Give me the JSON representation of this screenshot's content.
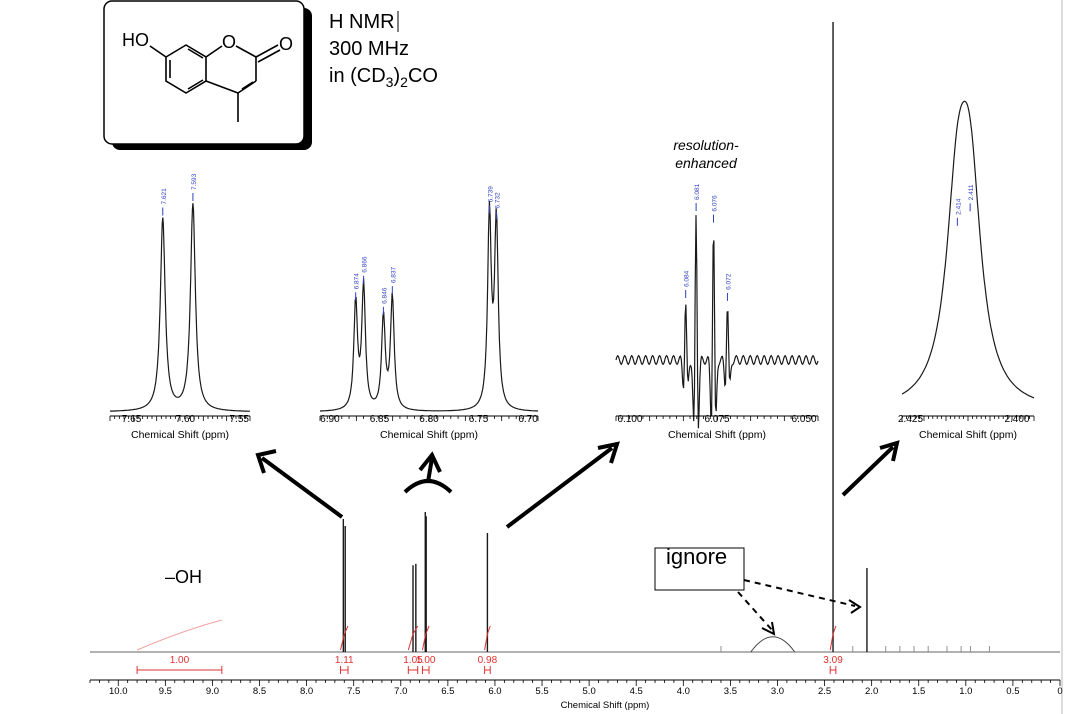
{
  "colors": {
    "spectrum": "#1a1a1a",
    "integral": "#e03030",
    "peak_label": "#3040c0",
    "arrow": "#000000"
  },
  "structure": {
    "ho_label": "HO",
    "o_ring_label": "O",
    "o_carbonyl_label": "O"
  },
  "experiment": {
    "line1": "H NMR",
    "line2": "300 MHz",
    "line3_pre": "in (CD",
    "line3_sub1": "3",
    "line3_mid": ")",
    "line3_sub2": "2",
    "line3_post": "CO"
  },
  "annotations": {
    "resolution_line1": "resolution-",
    "resolution_line2": "enhanced",
    "oh_label": "–OH",
    "ignore_label": "ignore"
  },
  "chart_data": [
    {
      "type": "line",
      "name": "main-spectrum",
      "xlabel": "Chemical Shift (ppm)",
      "x_reversed": true,
      "xlim": [
        10.3,
        0.0
      ],
      "x_ticks": [
        "10.0",
        "9.5",
        "9.0",
        "8.5",
        "8.0",
        "7.5",
        "7.0",
        "6.5",
        "6.0",
        "5.5",
        "5.0",
        "4.5",
        "4.0",
        "3.5",
        "3.0",
        "2.5",
        "2.0",
        "1.5",
        "1.0",
        "0.5",
        "0"
      ],
      "peaks": [
        {
          "ppm": 7.61,
          "rel_height": 0.95
        },
        {
          "ppm": 7.59,
          "rel_height": 0.9
        },
        {
          "ppm": 6.87,
          "rel_height": 0.62
        },
        {
          "ppm": 6.84,
          "rel_height": 0.63
        },
        {
          "ppm": 6.74,
          "rel_height": 1.0
        },
        {
          "ppm": 6.73,
          "rel_height": 0.97
        },
        {
          "ppm": 6.08,
          "rel_height": 0.85
        },
        {
          "ppm": 2.41,
          "rel_height": 4.5
        },
        {
          "ppm": 2.05,
          "rel_height": 0.6
        },
        {
          "ppm": 3.05,
          "rel_height": 0.08
        }
      ],
      "integrals": [
        {
          "from": 9.8,
          "to": 8.9,
          "label": "1.00"
        },
        {
          "from": 7.64,
          "to": 7.56,
          "label": "1.11"
        },
        {
          "from": 6.92,
          "to": 6.82,
          "label": "1.05"
        },
        {
          "from": 6.77,
          "to": 6.7,
          "label": "1.00"
        },
        {
          "from": 6.11,
          "to": 6.05,
          "label": "0.98"
        },
        {
          "from": 2.44,
          "to": 2.38,
          "label": "3.09"
        }
      ]
    },
    {
      "type": "line",
      "name": "inset-7.6",
      "xlabel": "Chemical Shift (ppm)",
      "xlim": [
        7.67,
        7.54
      ],
      "x_ticks": [
        "7.65",
        "7.60",
        "7.55"
      ],
      "peak_labels": [
        "7.621",
        "7.593"
      ],
      "peaks": [
        {
          "ppm": 7.621,
          "rel_height": 0.93
        },
        {
          "ppm": 7.593,
          "rel_height": 1.0
        }
      ]
    },
    {
      "type": "line",
      "name": "inset-6.8",
      "xlabel": "Chemical Shift (ppm)",
      "xlim": [
        6.91,
        6.69
      ],
      "x_ticks": [
        "6.90",
        "6.85",
        "6.80",
        "6.75",
        "6.70"
      ],
      "peak_labels": [
        "6.874",
        "6.866",
        "6.846",
        "6.837",
        "6.739",
        "6.732"
      ],
      "peaks": [
        {
          "ppm": 6.874,
          "rel_height": 0.52
        },
        {
          "ppm": 6.866,
          "rel_height": 0.6
        },
        {
          "ppm": 6.846,
          "rel_height": 0.45
        },
        {
          "ppm": 6.837,
          "rel_height": 0.55
        },
        {
          "ppm": 6.739,
          "rel_height": 0.94
        },
        {
          "ppm": 6.732,
          "rel_height": 0.91
        }
      ]
    },
    {
      "type": "line",
      "name": "inset-6.08",
      "xlabel": "Chemical Shift (ppm)",
      "xlim": [
        6.104,
        6.046
      ],
      "x_ticks": [
        "6.100",
        "6.075",
        "6.050"
      ],
      "peak_labels": [
        "6.084",
        "6.081",
        "6.076",
        "6.072"
      ],
      "peaks": [
        {
          "ppm": 6.084,
          "rel_height": 0.4
        },
        {
          "ppm": 6.081,
          "rel_height": 1.0
        },
        {
          "ppm": 6.076,
          "rel_height": 0.92
        },
        {
          "ppm": 6.072,
          "rel_height": 0.38
        }
      ]
    },
    {
      "type": "line",
      "name": "inset-2.41",
      "xlabel": "Chemical Shift (ppm)",
      "xlim": [
        2.427,
        2.396
      ],
      "x_ticks": [
        "2.425",
        "2.400"
      ],
      "peak_labels": [
        "2.414",
        "2.411"
      ],
      "peaks": [
        {
          "ppm": 2.414,
          "rel_height": 0.88
        },
        {
          "ppm": 2.411,
          "rel_height": 0.95
        }
      ]
    }
  ]
}
